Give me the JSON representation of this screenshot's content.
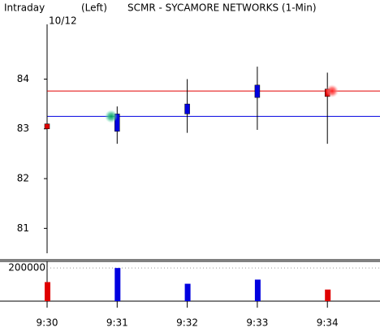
{
  "chart_data": {
    "type": "candlestick",
    "label": "Intraday",
    "side": "(Left)",
    "title": "SCMR - SYCAMORE NETWORKS (1-Min)",
    "date": "10/12",
    "categories": [
      "9:30",
      "9:31",
      "9:32",
      "9:33",
      "9:34"
    ],
    "open": [
      83.1,
      82.95,
      83.3,
      83.63,
      83.8
    ],
    "high": [
      83.45,
      83.45,
      84.0,
      84.25,
      84.13
    ],
    "low": [
      82.75,
      82.7,
      82.92,
      82.98,
      82.7
    ],
    "close": [
      83.0,
      83.3,
      83.5,
      83.88,
      83.65
    ],
    "up_color": "#0000e0",
    "down_color": "#e00000",
    "ylim": [
      80.5,
      85.1
    ],
    "yticks": [
      81,
      82,
      83,
      84
    ],
    "reference_lines": [
      {
        "value": 83.76,
        "color": "#e00000"
      },
      {
        "value": 83.25,
        "color": "#0000e0"
      }
    ],
    "volume": [
      115000,
      200000,
      105000,
      130000,
      70000
    ],
    "volume_ylim": [
      0,
      240000
    ],
    "volume_yticks": [
      200000
    ]
  }
}
